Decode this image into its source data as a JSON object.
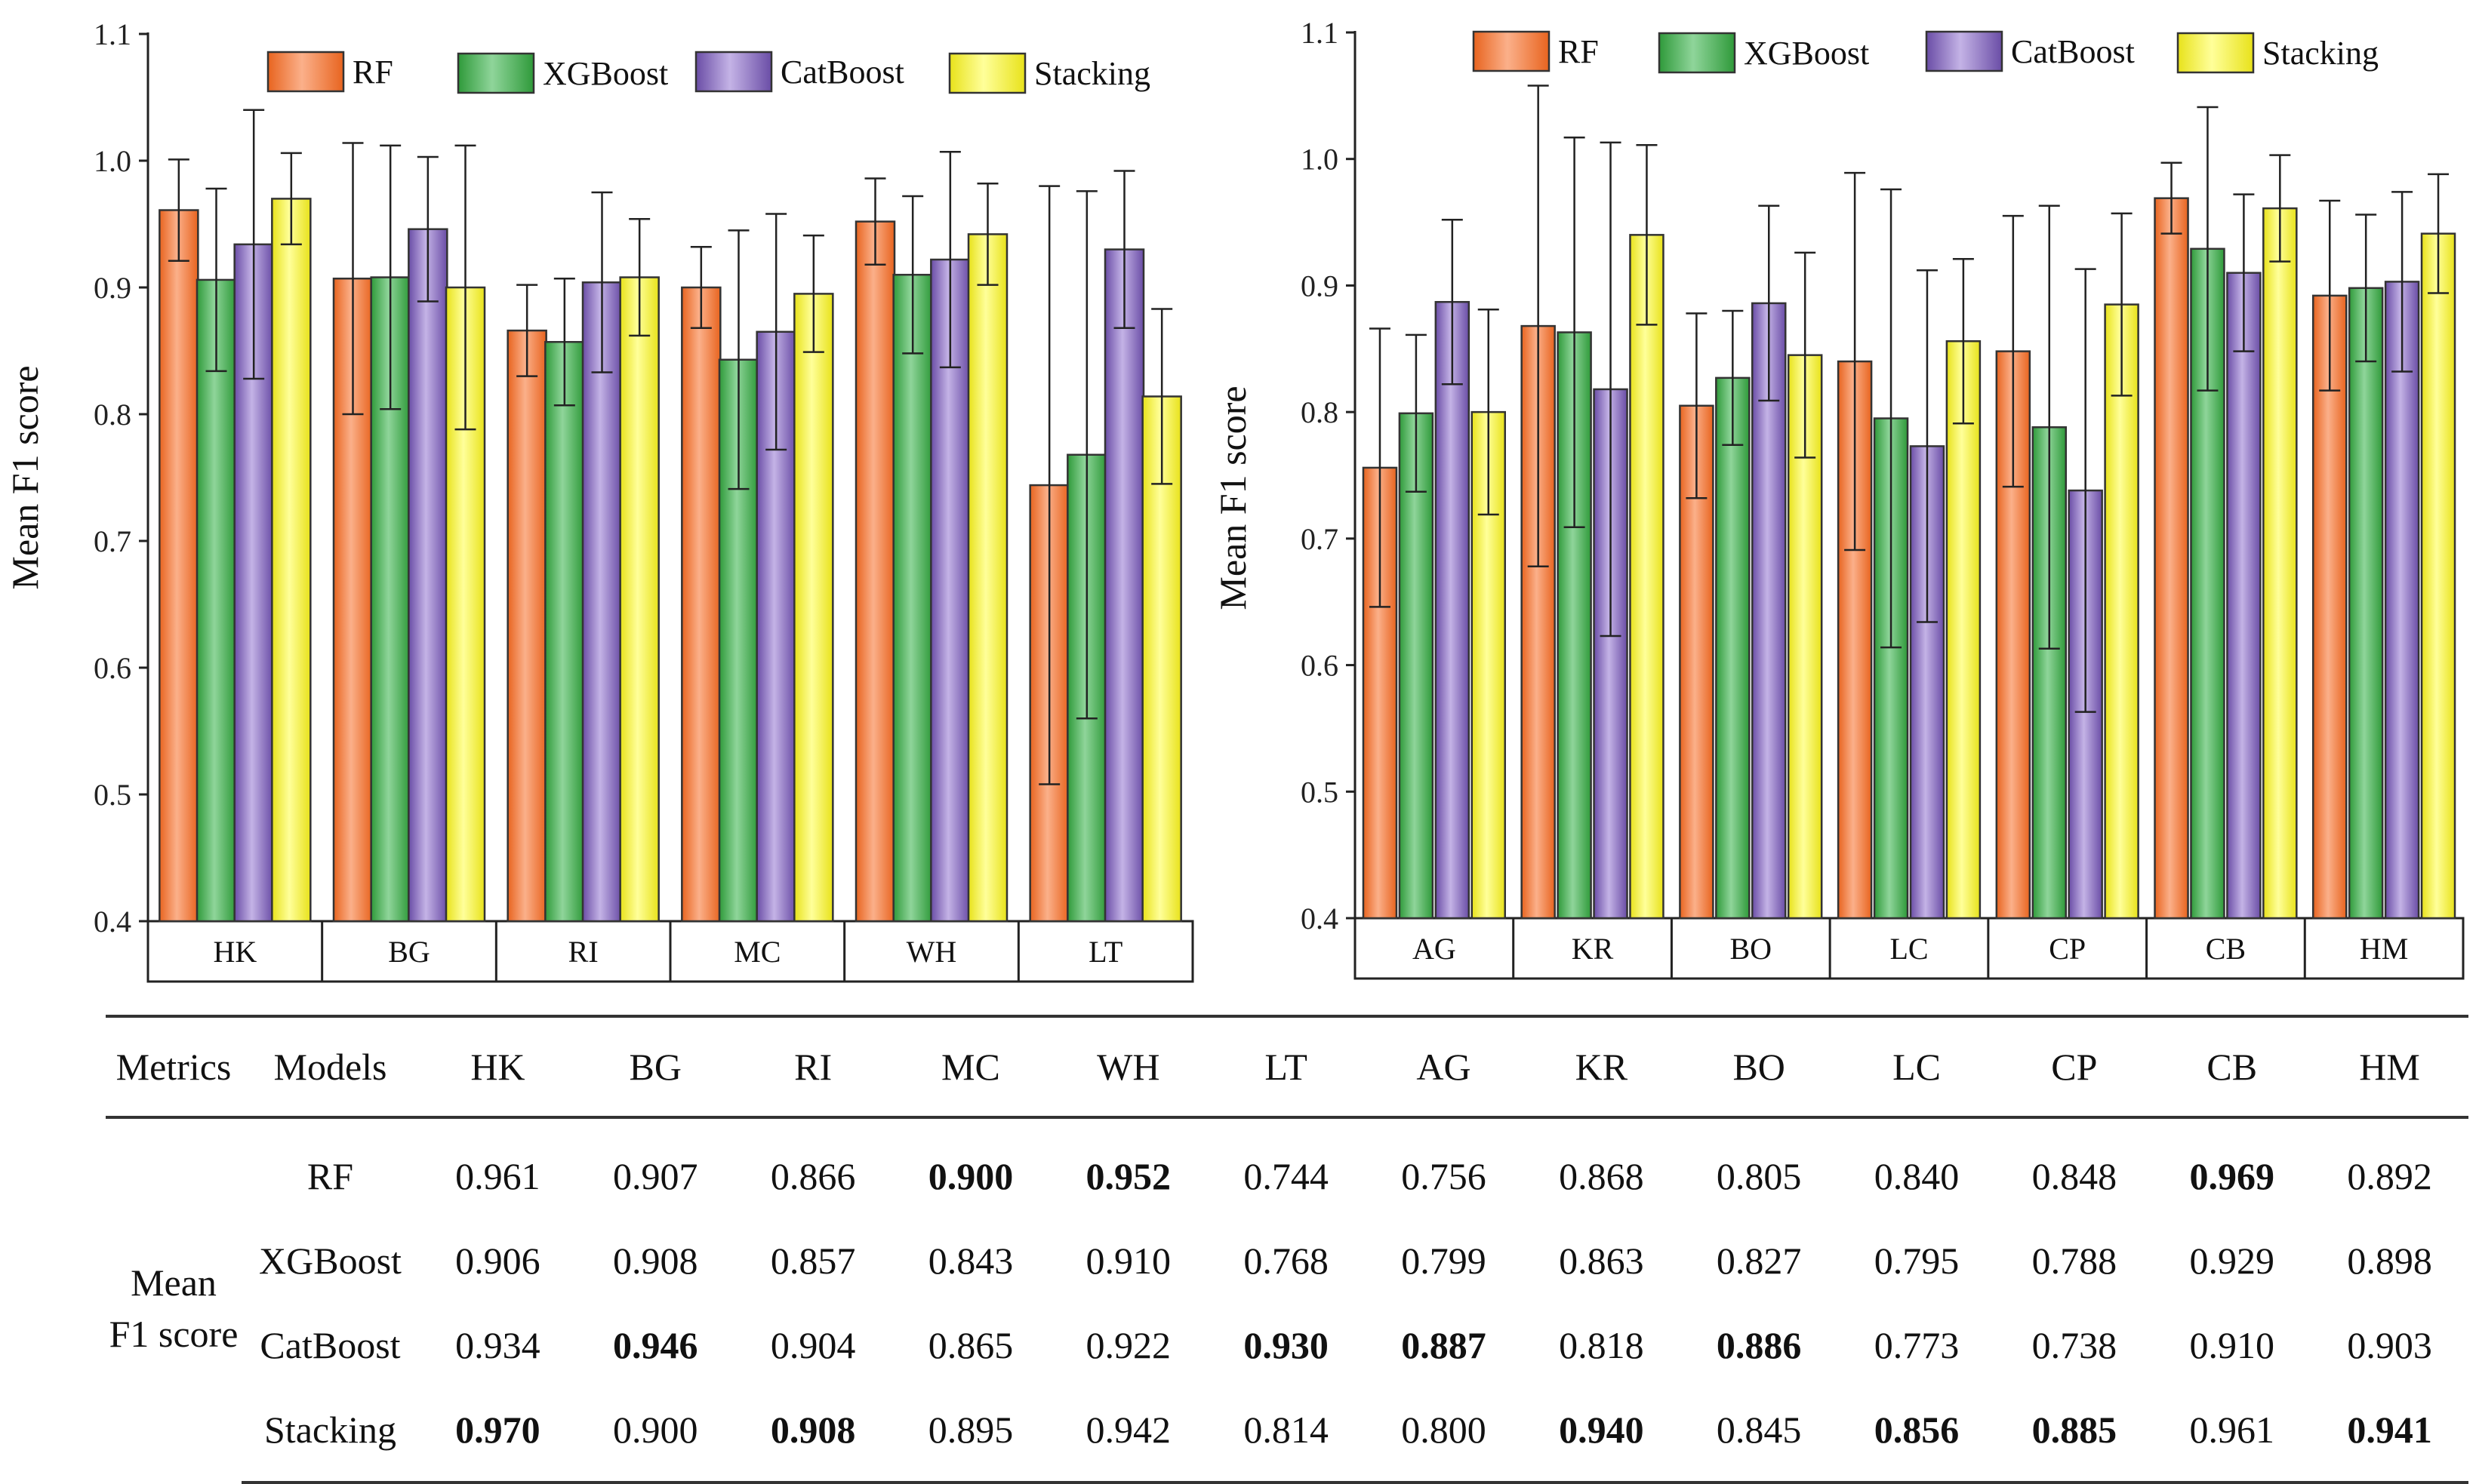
{
  "colors": {
    "RF": "#f47a33",
    "XGBoost": "#3fae49",
    "CatBoost": "#7b5fb3",
    "Stacking": "#f0ee2a"
  },
  "chart_data": [
    {
      "type": "bar",
      "ylabel": "Mean F1 score",
      "ylim": [
        0.4,
        1.1
      ],
      "yticks": [
        "0.4",
        "0.5",
        "0.6",
        "0.7",
        "0.8",
        "0.9",
        "1.0",
        "1.1"
      ],
      "legend": [
        "RF",
        "XGBoost",
        "CatBoost",
        "Stacking"
      ],
      "legend_position": "top",
      "categories": [
        "HK",
        "BG",
        "RI",
        "MC",
        "WH",
        "LT"
      ],
      "series": [
        {
          "name": "RF",
          "values": [
            0.961,
            0.907,
            0.866,
            0.9,
            0.952,
            0.744
          ],
          "errors": [
            0.04,
            0.107,
            0.036,
            0.032,
            0.034,
            0.236
          ]
        },
        {
          "name": "XGBoost",
          "values": [
            0.906,
            0.908,
            0.857,
            0.843,
            0.91,
            0.768
          ],
          "errors": [
            0.072,
            0.104,
            0.05,
            0.102,
            0.062,
            0.208
          ]
        },
        {
          "name": "CatBoost",
          "values": [
            0.934,
            0.946,
            0.904,
            0.865,
            0.922,
            0.93
          ],
          "errors": [
            0.106,
            0.057,
            0.071,
            0.093,
            0.085,
            0.062
          ]
        },
        {
          "name": "Stacking",
          "values": [
            0.97,
            0.9,
            0.908,
            0.895,
            0.942,
            0.814
          ],
          "errors": [
            0.036,
            0.112,
            0.046,
            0.046,
            0.04,
            0.069
          ]
        }
      ]
    },
    {
      "type": "bar",
      "ylabel": "Mean F1 score",
      "ylim": [
        0.4,
        1.1
      ],
      "yticks": [
        "0.4",
        "0.5",
        "0.6",
        "0.7",
        "0.8",
        "0.9",
        "1.0",
        "1.1"
      ],
      "legend": [
        "RF",
        "XGBoost",
        "CatBoost",
        "Stacking"
      ],
      "legend_position": "top",
      "categories": [
        "AG",
        "KR",
        "BO",
        "LC",
        "CP",
        "CB",
        "HM"
      ],
      "series": [
        {
          "name": "RF",
          "values": [
            0.756,
            0.868,
            0.805,
            0.84,
            0.848,
            0.969,
            0.892
          ],
          "errors": [
            0.11,
            0.19,
            0.073,
            0.149,
            0.107,
            0.028,
            0.075
          ]
        },
        {
          "name": "XGBoost",
          "values": [
            0.799,
            0.863,
            0.827,
            0.795,
            0.788,
            0.929,
            0.898
          ],
          "errors": [
            0.062,
            0.154,
            0.053,
            0.181,
            0.175,
            0.112,
            0.058
          ]
        },
        {
          "name": "CatBoost",
          "values": [
            0.887,
            0.818,
            0.886,
            0.773,
            0.738,
            0.91,
            0.903
          ],
          "errors": [
            0.065,
            0.195,
            0.077,
            0.139,
            0.175,
            0.062,
            0.071
          ]
        },
        {
          "name": "Stacking",
          "values": [
            0.8,
            0.94,
            0.845,
            0.856,
            0.885,
            0.961,
            0.941
          ],
          "errors": [
            0.081,
            0.071,
            0.081,
            0.065,
            0.072,
            0.042,
            0.047
          ]
        }
      ]
    }
  ],
  "table": {
    "headers": [
      "Metrics",
      "Models",
      "HK",
      "BG",
      "RI",
      "MC",
      "WH",
      "LT",
      "AG",
      "KR",
      "BO",
      "LC",
      "CP",
      "CB",
      "HM"
    ],
    "metric_lines": [
      "Mean",
      "F1 score"
    ],
    "rows": [
      {
        "model": "RF",
        "values": [
          "0.961",
          "0.907",
          "0.866",
          "0.900",
          "0.952",
          "0.744",
          "0.756",
          "0.868",
          "0.805",
          "0.840",
          "0.848",
          "0.969",
          "0.892"
        ],
        "bold": [
          3,
          4,
          11
        ]
      },
      {
        "model": "XGBoost",
        "values": [
          "0.906",
          "0.908",
          "0.857",
          "0.843",
          "0.910",
          "0.768",
          "0.799",
          "0.863",
          "0.827",
          "0.795",
          "0.788",
          "0.929",
          "0.898"
        ],
        "bold": []
      },
      {
        "model": "CatBoost",
        "values": [
          "0.934",
          "0.946",
          "0.904",
          "0.865",
          "0.922",
          "0.930",
          "0.887",
          "0.818",
          "0.886",
          "0.773",
          "0.738",
          "0.910",
          "0.903"
        ],
        "bold": [
          1,
          5,
          6,
          8
        ]
      },
      {
        "model": "Stacking",
        "values": [
          "0.970",
          "0.900",
          "0.908",
          "0.895",
          "0.942",
          "0.814",
          "0.800",
          "0.940",
          "0.845",
          "0.856",
          "0.885",
          "0.961",
          "0.941"
        ],
        "bold": [
          0,
          2,
          7,
          9,
          10,
          12
        ]
      }
    ]
  }
}
